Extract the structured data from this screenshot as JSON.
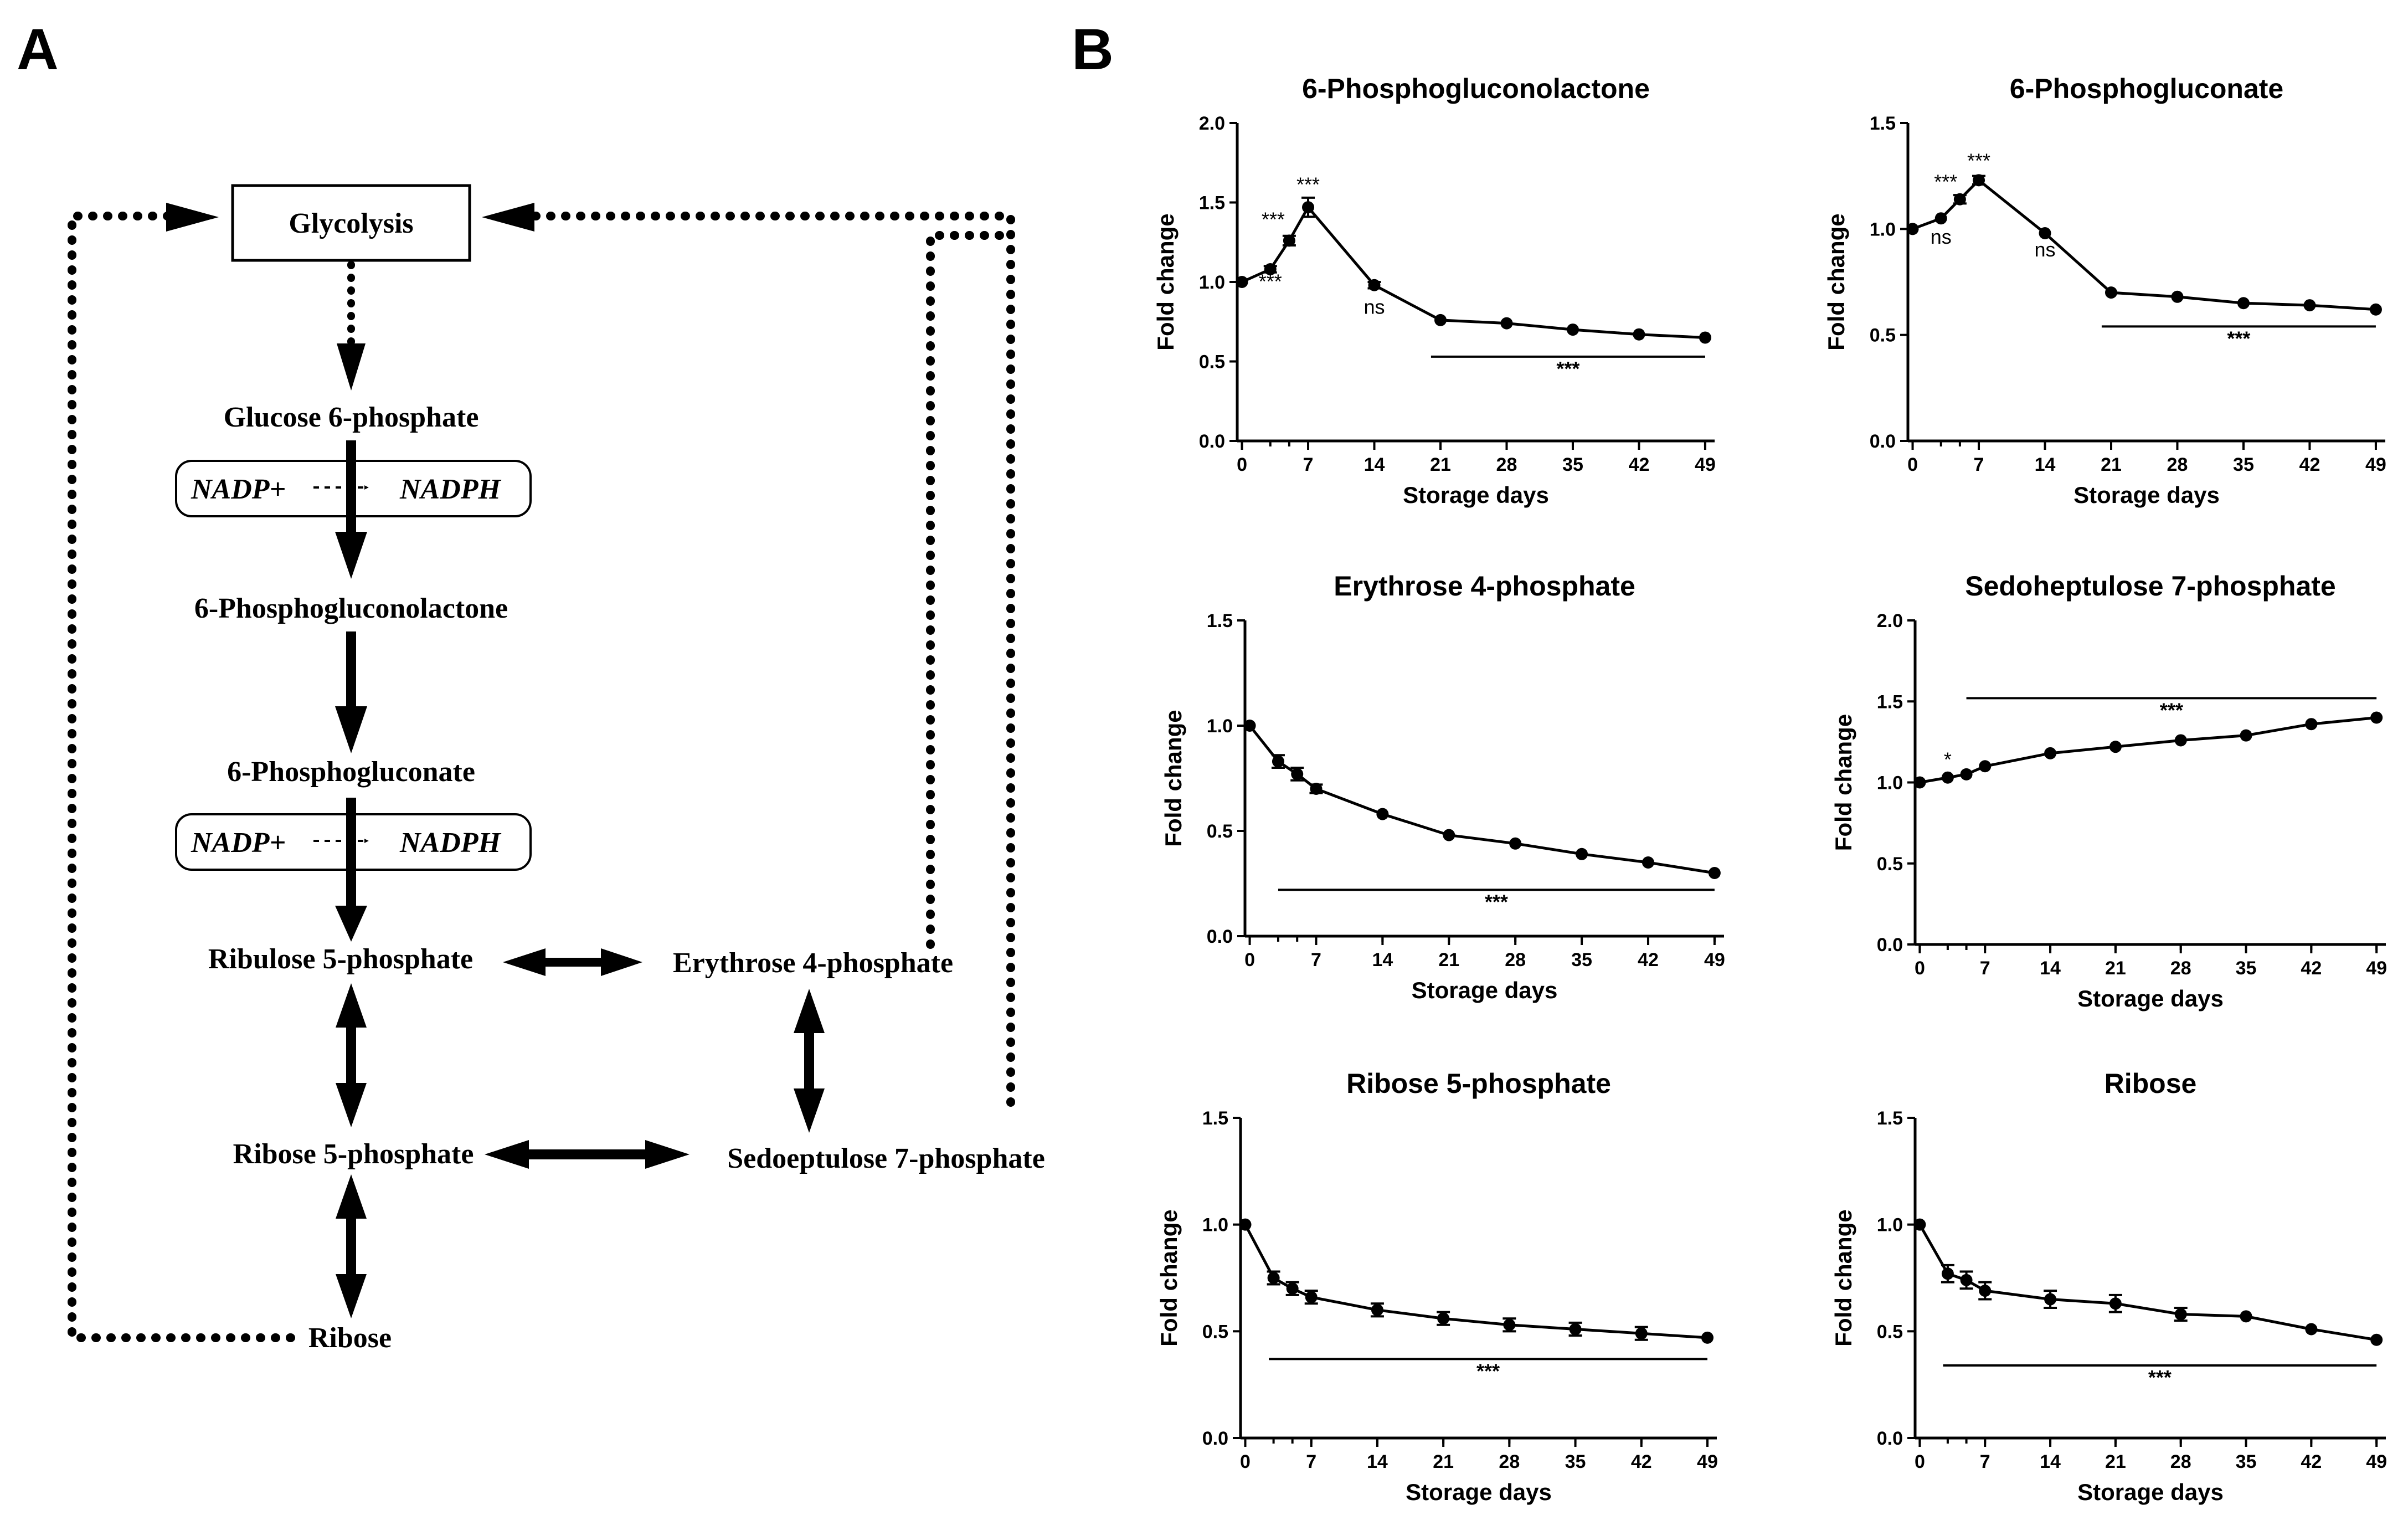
{
  "panels": {
    "a": "A",
    "b": "B"
  },
  "pathway": {
    "glycolysis": "Glycolysis",
    "g6p": "Glucose 6-phosphate",
    "pgl": "6-Phosphogluconolactone",
    "pg": "6-Phosphogluconate",
    "ru5p": "Ribulose 5-phosphate",
    "e4p": "Erythrose 4-phosphate",
    "r5p": "Ribose 5-phosphate",
    "s7p": "Sedoeptulose 7-phosphate",
    "ribose": "Ribose",
    "nadp": "NADP+",
    "nadph": "NADPH"
  },
  "chart_data": [
    {
      "type": "line",
      "title": "6-Phosphogluconolactone",
      "xlabel": "Storage days",
      "ylabel": "Fold change",
      "x": [
        0,
        3,
        5,
        7,
        14,
        21,
        28,
        35,
        42,
        49
      ],
      "values": [
        1.0,
        1.08,
        1.26,
        1.47,
        0.98,
        0.76,
        0.74,
        0.7,
        0.67,
        0.65
      ],
      "errors": [
        0,
        0.02,
        0.03,
        0.06,
        0.02,
        0.01,
        0.01,
        0.01,
        0.01,
        0.01
      ],
      "xticks": [
        0,
        7,
        14,
        21,
        28,
        35,
        42,
        49
      ],
      "yticks": [
        "0.0",
        "0.5",
        "1.0",
        "1.5",
        "2.0"
      ],
      "ylim": [
        0,
        2.0
      ],
      "annotations": [
        {
          "x": 3,
          "y": 0.96,
          "text": "***"
        },
        {
          "x": 3.3,
          "y": 1.35,
          "text": "***"
        },
        {
          "x": 7,
          "y": 1.57,
          "text": "***"
        },
        {
          "x": 14,
          "y": 0.8,
          "text": "ns"
        }
      ],
      "sig_bar": {
        "x0": 20,
        "x1": 49,
        "y": 0.53,
        "text": "***"
      }
    },
    {
      "type": "line",
      "title": "6-Phosphogluconate",
      "xlabel": "Storage days",
      "ylabel": "Fold change",
      "x": [
        0,
        3,
        5,
        7,
        14,
        21,
        28,
        35,
        42,
        49
      ],
      "values": [
        1.0,
        1.05,
        1.14,
        1.23,
        0.98,
        0.7,
        0.68,
        0.65,
        0.64,
        0.62
      ],
      "errors": [
        0,
        0.01,
        0.02,
        0.02,
        0.01,
        0.01,
        0.01,
        0.01,
        0.01,
        0.01
      ],
      "xticks": [
        0,
        7,
        14,
        21,
        28,
        35,
        42,
        49
      ],
      "yticks": [
        "0.0",
        "0.5",
        "1.0",
        "1.5"
      ],
      "ylim": [
        0,
        1.5
      ],
      "annotations": [
        {
          "x": 3,
          "y": 0.93,
          "text": "ns"
        },
        {
          "x": 3.5,
          "y": 1.19,
          "text": "***"
        },
        {
          "x": 7,
          "y": 1.29,
          "text": "***"
        },
        {
          "x": 14,
          "y": 0.87,
          "text": "ns"
        }
      ],
      "sig_bar": {
        "x0": 20,
        "x1": 49,
        "y": 0.54,
        "text": "***"
      }
    },
    {
      "type": "line",
      "title": "Erythrose 4-phosphate",
      "xlabel": "Storage days",
      "ylabel": "Fold change",
      "x": [
        0,
        3,
        5,
        7,
        14,
        21,
        28,
        35,
        42,
        49
      ],
      "values": [
        1.0,
        0.83,
        0.77,
        0.7,
        0.58,
        0.48,
        0.44,
        0.39,
        0.35,
        0.3
      ],
      "errors": [
        0,
        0.03,
        0.03,
        0.02,
        0.01,
        0.01,
        0.01,
        0.01,
        0.01,
        0.01
      ],
      "xticks": [
        0,
        7,
        14,
        21,
        28,
        35,
        42,
        49
      ],
      "yticks": [
        "0.0",
        "0.5",
        "1.0",
        "1.5"
      ],
      "ylim": [
        0,
        1.5
      ],
      "annotations": [],
      "sig_bar": {
        "x0": 3,
        "x1": 49,
        "y": 0.22,
        "text": "***"
      }
    },
    {
      "type": "line",
      "title": "Sedoheptulose 7-phosphate",
      "xlabel": "Storage days",
      "ylabel": "Fold change",
      "x": [
        0,
        3,
        5,
        7,
        14,
        21,
        28,
        35,
        42,
        49
      ],
      "values": [
        1.0,
        1.03,
        1.05,
        1.1,
        1.18,
        1.22,
        1.26,
        1.29,
        1.36,
        1.4
      ],
      "errors": [
        0,
        0.01,
        0.01,
        0.01,
        0.01,
        0.01,
        0.01,
        0.01,
        0.01,
        0.01
      ],
      "xticks": [
        0,
        7,
        14,
        21,
        28,
        35,
        42,
        49
      ],
      "yticks": [
        "0.0",
        "0.5",
        "1.0",
        "1.5",
        "2.0"
      ],
      "ylim": [
        0,
        2.0
      ],
      "annotations": [
        {
          "x": 3,
          "y": 1.1,
          "text": "*"
        }
      ],
      "sig_bar": {
        "x0": 5,
        "x1": 49,
        "y": 1.52,
        "text": "***"
      }
    },
    {
      "type": "line",
      "title": "Ribose 5-phosphate",
      "xlabel": "Storage days",
      "ylabel": "Fold change",
      "x": [
        0,
        3,
        5,
        7,
        14,
        21,
        28,
        35,
        42,
        49
      ],
      "values": [
        1.0,
        0.75,
        0.7,
        0.66,
        0.6,
        0.56,
        0.53,
        0.51,
        0.49,
        0.47
      ],
      "errors": [
        0,
        0.03,
        0.03,
        0.03,
        0.03,
        0.03,
        0.03,
        0.03,
        0.03,
        0.01
      ],
      "xticks": [
        0,
        7,
        14,
        21,
        28,
        35,
        42,
        49
      ],
      "yticks": [
        "0.0",
        "0.5",
        "1.0",
        "1.5"
      ],
      "ylim": [
        0,
        1.5
      ],
      "annotations": [],
      "sig_bar": {
        "x0": 2.5,
        "x1": 49,
        "y": 0.37,
        "text": "***"
      }
    },
    {
      "type": "line",
      "title": "Ribose",
      "xlabel": "Storage days",
      "ylabel": "Fold change",
      "x": [
        0,
        3,
        5,
        7,
        14,
        21,
        28,
        35,
        42,
        49
      ],
      "values": [
        1.0,
        0.77,
        0.74,
        0.69,
        0.65,
        0.63,
        0.58,
        0.57,
        0.51,
        0.46
      ],
      "errors": [
        0,
        0.04,
        0.04,
        0.04,
        0.04,
        0.04,
        0.03,
        0.01,
        0.01,
        0.01
      ],
      "xticks": [
        0,
        7,
        14,
        21,
        28,
        35,
        42,
        49
      ],
      "yticks": [
        "0.0",
        "0.5",
        "1.0",
        "1.5"
      ],
      "ylim": [
        0,
        1.5
      ],
      "annotations": [],
      "sig_bar": {
        "x0": 2.5,
        "x1": 49,
        "y": 0.34,
        "text": "***"
      }
    }
  ]
}
